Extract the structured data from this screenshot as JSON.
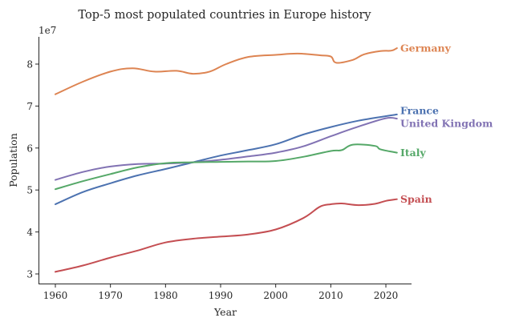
{
  "chart_data": {
    "type": "line",
    "title": "Top-5 most populated countries in Europe history",
    "xlabel": "Year",
    "ylabel": "Population",
    "y_offset_label": "1e7",
    "y_scale": 10000000,
    "xlim": [
      1957,
      2025
    ],
    "ylim": [
      2.78,
      8.65
    ],
    "x_ticks": [
      1960,
      1970,
      1980,
      1990,
      2000,
      2010,
      2020
    ],
    "y_ticks": [
      3,
      4,
      5,
      6,
      7,
      8
    ],
    "grid": false,
    "legend": "direct labels at line ends (right)",
    "series": [
      {
        "name": "Germany",
        "color": "#dd8452",
        "x": [
          1960,
          1965,
          1970,
          1974,
          1978,
          1982,
          1985,
          1988,
          1991,
          1995,
          2000,
          2004,
          2008,
          2010,
          2011,
          2014,
          2016,
          2019,
          2021,
          2022
        ],
        "values": [
          72.8,
          75.8,
          78.2,
          79.0,
          78.2,
          78.4,
          77.7,
          78.2,
          80.0,
          81.7,
          82.2,
          82.5,
          82.1,
          81.8,
          80.3,
          81.0,
          82.3,
          83.1,
          83.2,
          83.8
        ]
      },
      {
        "name": "France",
        "color": "#4c72b0",
        "x": [
          1960,
          1965,
          1970,
          1975,
          1980,
          1985,
          1990,
          1995,
          2000,
          2005,
          2010,
          2015,
          2020,
          2022
        ],
        "values": [
          46.6,
          49.5,
          51.6,
          53.5,
          55.0,
          56.6,
          58.2,
          59.5,
          60.9,
          63.2,
          65.0,
          66.5,
          67.6,
          68.0
        ]
      },
      {
        "name": "United Kingdom",
        "color": "#8172b3",
        "x": [
          1960,
          1965,
          1970,
          1975,
          1980,
          1985,
          1990,
          1995,
          2000,
          2005,
          2010,
          2015,
          2020,
          2022
        ],
        "values": [
          52.4,
          54.3,
          55.6,
          56.2,
          56.3,
          56.6,
          57.2,
          58.0,
          58.9,
          60.4,
          62.8,
          65.1,
          67.1,
          67.0
        ]
      },
      {
        "name": "Italy",
        "color": "#55a868",
        "x": [
          1960,
          1965,
          1970,
          1975,
          1980,
          1985,
          1990,
          1995,
          2000,
          2005,
          2010,
          2012,
          2014,
          2018,
          2019,
          2022
        ],
        "values": [
          50.2,
          52.1,
          53.8,
          55.4,
          56.4,
          56.6,
          56.7,
          56.8,
          56.9,
          57.9,
          59.3,
          59.5,
          60.8,
          60.5,
          59.7,
          58.9
        ]
      },
      {
        "name": "Spain",
        "color": "#c44e52",
        "x": [
          1960,
          1965,
          1970,
          1975,
          1980,
          1985,
          1990,
          1995,
          2000,
          2005,
          2008,
          2010,
          2012,
          2015,
          2018,
          2020,
          2022
        ],
        "values": [
          30.5,
          32.0,
          33.9,
          35.6,
          37.5,
          38.4,
          38.9,
          39.4,
          40.6,
          43.3,
          46.0,
          46.6,
          46.8,
          46.4,
          46.7,
          47.4,
          47.8
        ]
      }
    ],
    "values_unit": "millions"
  }
}
